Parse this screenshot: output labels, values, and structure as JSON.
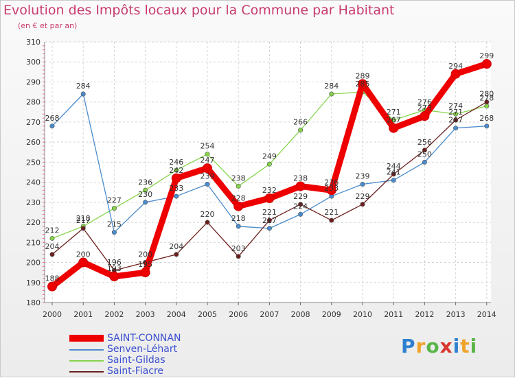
{
  "title": "Evolution des Impôts locaux pour la Commune par Habitant",
  "subtitle": "(en € et par an)",
  "logo_text": "Proxiti",
  "chart_data": {
    "type": "line",
    "title": "Evolution des Impôts locaux pour la Commune par Habitant",
    "subtitle": "(en € et par an)",
    "categories": [
      "2000",
      "2001",
      "2002",
      "2003",
      "2004",
      "2005",
      "2006",
      "2007",
      "2008",
      "2009",
      "2010",
      "2011",
      "2012",
      "2013",
      "2014"
    ],
    "ylim": [
      180,
      310
    ],
    "yticks": [
      180,
      190,
      200,
      210,
      220,
      230,
      240,
      250,
      260,
      270,
      280,
      290,
      300,
      310
    ],
    "grid": true,
    "legend_position": "bottom-left",
    "series": [
      {
        "name": "SAINT-CONNAN",
        "color": "#ee0000",
        "values": [
          188,
          200,
          193,
          195,
          242,
          247,
          228,
          232,
          238,
          236,
          289,
          267,
          273,
          294,
          299
        ]
      },
      {
        "name": "Senven-Léhart",
        "color": "#4a8ccd",
        "values": [
          268,
          284,
          215,
          230,
          233,
          239,
          218,
          217,
          224,
          233,
          239,
          241,
          250,
          267,
          268
        ]
      },
      {
        "name": "Saint-Gildas",
        "color": "#86d44a",
        "values": [
          212,
          218,
          227,
          236,
          246,
          254,
          238,
          249,
          266,
          284,
          285,
          271,
          276,
          274,
          278
        ]
      },
      {
        "name": "Saint-Fiacre",
        "color": "#6b1e1e",
        "values": [
          204,
          217,
          196,
          200,
          204,
          220,
          203,
          221,
          229,
          221,
          229,
          244,
          256,
          271,
          280
        ]
      }
    ]
  }
}
